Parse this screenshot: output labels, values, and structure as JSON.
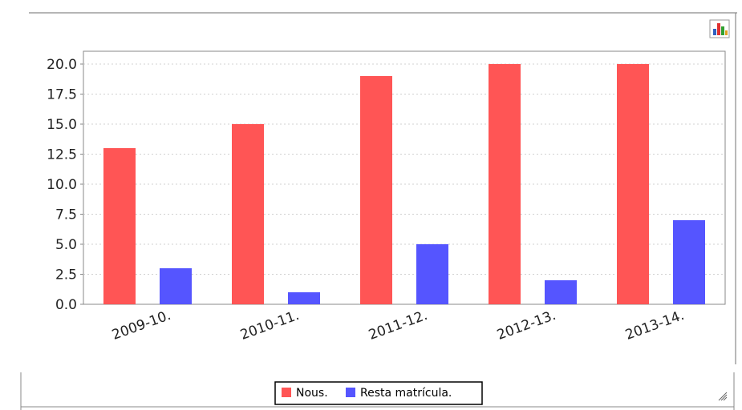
{
  "chart_data": {
    "type": "bar",
    "categories": [
      "2009-10.",
      "2010-11.",
      "2011-12.",
      "2012-13.",
      "2013-14."
    ],
    "series": [
      {
        "name": "Nous.",
        "values": [
          13,
          15,
          19,
          20,
          20
        ],
        "color": "#ff5555"
      },
      {
        "name": "Resta matrícula.",
        "values": [
          3,
          1,
          5,
          2,
          7
        ],
        "color": "#5555ff"
      }
    ],
    "yticks": [
      "0.0",
      "2.5",
      "5.0",
      "7.5",
      "10.0",
      "12.5",
      "15.0",
      "17.5",
      "20.0"
    ],
    "ylim": [
      0,
      20
    ],
    "grid": true,
    "legend_position": "bottom"
  },
  "icons": {
    "chart_type": "bar-chart-icon",
    "resize": "resize-grip-icon"
  }
}
